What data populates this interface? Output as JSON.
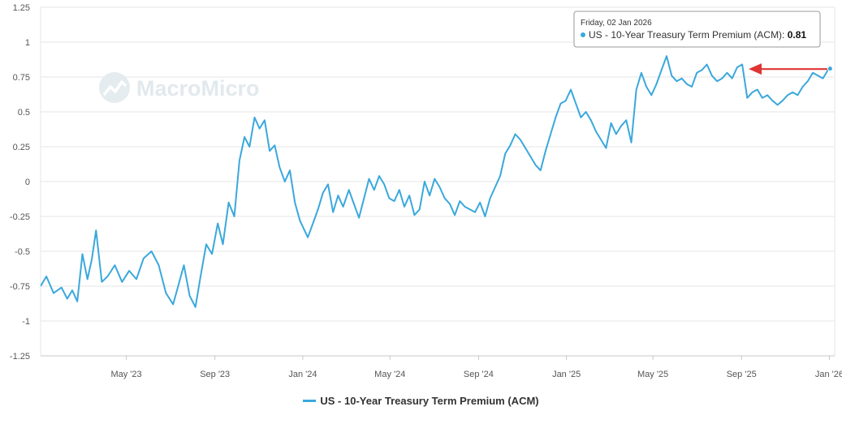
{
  "watermark": {
    "text": "MacroMicro"
  },
  "tooltip": {
    "date": "Friday, 02 Jan 2026",
    "series_label": "US - 10-Year Treasury Term Premium (ACM):",
    "value_text": "0.81"
  },
  "legend": {
    "label": "US - 10-Year Treasury Term Premium (ACM)"
  },
  "colors": {
    "series": "#3aa8dc",
    "arrow": "#e03434",
    "grid": "#e6e6e6"
  },
  "chart_data": {
    "type": "line",
    "title": "",
    "xlabel": "",
    "ylabel": "",
    "ylim": [
      -1.25,
      1.25
    ],
    "yticks": [
      1.25,
      1,
      0.75,
      0.5,
      0.25,
      0,
      -0.25,
      -0.5,
      -0.75,
      -1,
      -1.25
    ],
    "ytick_labels": [
      "1.25",
      "1",
      "0.75",
      "0.5",
      "0.25",
      "0",
      "-0.25",
      "-0.5",
      "-0.75",
      "-1",
      "-1.25"
    ],
    "xlim": [
      "2023-01-02",
      "2026-01-05"
    ],
    "xticks": [
      {
        "date": "2023-05-01",
        "label": "May '23"
      },
      {
        "date": "2023-09-01",
        "label": "Sep '23"
      },
      {
        "date": "2024-01-01",
        "label": "Jan '24"
      },
      {
        "date": "2024-05-01",
        "label": "May '24"
      },
      {
        "date": "2024-09-01",
        "label": "Sep '24"
      },
      {
        "date": "2025-01-01",
        "label": "Jan '25"
      },
      {
        "date": "2025-05-01",
        "label": "May '25"
      },
      {
        "date": "2025-09-01",
        "label": "Sep '25"
      },
      {
        "date": "2026-01-01",
        "label": "Jan '26"
      }
    ],
    "series": [
      {
        "name": "US - 10-Year Treasury Term Premium (ACM)",
        "points": [
          [
            "2023-01-02",
            -0.75
          ],
          [
            "2023-01-10",
            -0.68
          ],
          [
            "2023-01-20",
            -0.8
          ],
          [
            "2023-01-31",
            -0.76
          ],
          [
            "2023-02-08",
            -0.84
          ],
          [
            "2023-02-15",
            -0.78
          ],
          [
            "2023-02-22",
            -0.86
          ],
          [
            "2023-03-01",
            -0.52
          ],
          [
            "2023-03-08",
            -0.7
          ],
          [
            "2023-03-14",
            -0.56
          ],
          [
            "2023-03-20",
            -0.35
          ],
          [
            "2023-03-28",
            -0.72
          ],
          [
            "2023-04-05",
            -0.68
          ],
          [
            "2023-04-15",
            -0.6
          ],
          [
            "2023-04-25",
            -0.72
          ],
          [
            "2023-05-05",
            -0.64
          ],
          [
            "2023-05-15",
            -0.7
          ],
          [
            "2023-05-25",
            -0.55
          ],
          [
            "2023-06-05",
            -0.5
          ],
          [
            "2023-06-15",
            -0.6
          ],
          [
            "2023-06-25",
            -0.8
          ],
          [
            "2023-07-05",
            -0.88
          ],
          [
            "2023-07-12",
            -0.75
          ],
          [
            "2023-07-20",
            -0.6
          ],
          [
            "2023-07-28",
            -0.82
          ],
          [
            "2023-08-05",
            -0.9
          ],
          [
            "2023-08-12",
            -0.68
          ],
          [
            "2023-08-20",
            -0.45
          ],
          [
            "2023-08-28",
            -0.52
          ],
          [
            "2023-09-05",
            -0.3
          ],
          [
            "2023-09-12",
            -0.45
          ],
          [
            "2023-09-20",
            -0.15
          ],
          [
            "2023-09-28",
            -0.25
          ],
          [
            "2023-10-05",
            0.15
          ],
          [
            "2023-10-12",
            0.32
          ],
          [
            "2023-10-19",
            0.25
          ],
          [
            "2023-10-26",
            0.46
          ],
          [
            "2023-11-02",
            0.38
          ],
          [
            "2023-11-09",
            0.44
          ],
          [
            "2023-11-16",
            0.22
          ],
          [
            "2023-11-23",
            0.26
          ],
          [
            "2023-11-30",
            0.1
          ],
          [
            "2023-12-07",
            0.0
          ],
          [
            "2023-12-14",
            0.08
          ],
          [
            "2023-12-21",
            -0.15
          ],
          [
            "2023-12-28",
            -0.28
          ],
          [
            "2024-01-08",
            -0.4
          ],
          [
            "2024-01-15",
            -0.3
          ],
          [
            "2024-01-22",
            -0.2
          ],
          [
            "2024-01-29",
            -0.08
          ],
          [
            "2024-02-05",
            -0.02
          ],
          [
            "2024-02-12",
            -0.22
          ],
          [
            "2024-02-19",
            -0.1
          ],
          [
            "2024-02-26",
            -0.18
          ],
          [
            "2024-03-05",
            -0.06
          ],
          [
            "2024-03-12",
            -0.16
          ],
          [
            "2024-03-19",
            -0.26
          ],
          [
            "2024-03-26",
            -0.12
          ],
          [
            "2024-04-02",
            0.02
          ],
          [
            "2024-04-09",
            -0.06
          ],
          [
            "2024-04-16",
            0.04
          ],
          [
            "2024-04-23",
            -0.02
          ],
          [
            "2024-04-30",
            -0.12
          ],
          [
            "2024-05-07",
            -0.14
          ],
          [
            "2024-05-14",
            -0.06
          ],
          [
            "2024-05-21",
            -0.18
          ],
          [
            "2024-05-28",
            -0.1
          ],
          [
            "2024-06-04",
            -0.24
          ],
          [
            "2024-06-11",
            -0.2
          ],
          [
            "2024-06-18",
            0.0
          ],
          [
            "2024-06-25",
            -0.1
          ],
          [
            "2024-07-02",
            0.02
          ],
          [
            "2024-07-09",
            -0.04
          ],
          [
            "2024-07-16",
            -0.12
          ],
          [
            "2024-07-23",
            -0.16
          ],
          [
            "2024-07-30",
            -0.24
          ],
          [
            "2024-08-06",
            -0.14
          ],
          [
            "2024-08-13",
            -0.18
          ],
          [
            "2024-08-20",
            -0.2
          ],
          [
            "2024-08-27",
            -0.22
          ],
          [
            "2024-09-03",
            -0.15
          ],
          [
            "2024-09-10",
            -0.25
          ],
          [
            "2024-09-17",
            -0.12
          ],
          [
            "2024-09-24",
            -0.04
          ],
          [
            "2024-10-01",
            0.04
          ],
          [
            "2024-10-08",
            0.2
          ],
          [
            "2024-10-15",
            0.26
          ],
          [
            "2024-10-22",
            0.34
          ],
          [
            "2024-10-29",
            0.3
          ],
          [
            "2024-11-05",
            0.24
          ],
          [
            "2024-11-12",
            0.18
          ],
          [
            "2024-11-19",
            0.12
          ],
          [
            "2024-11-26",
            0.08
          ],
          [
            "2024-12-03",
            0.22
          ],
          [
            "2024-12-10",
            0.34
          ],
          [
            "2024-12-17",
            0.46
          ],
          [
            "2024-12-24",
            0.56
          ],
          [
            "2024-12-31",
            0.58
          ],
          [
            "2025-01-07",
            0.66
          ],
          [
            "2025-01-14",
            0.56
          ],
          [
            "2025-01-21",
            0.46
          ],
          [
            "2025-01-28",
            0.5
          ],
          [
            "2025-02-04",
            0.44
          ],
          [
            "2025-02-11",
            0.36
          ],
          [
            "2025-02-18",
            0.3
          ],
          [
            "2025-02-25",
            0.24
          ],
          [
            "2025-03-04",
            0.42
          ],
          [
            "2025-03-11",
            0.34
          ],
          [
            "2025-03-18",
            0.4
          ],
          [
            "2025-03-25",
            0.44
          ],
          [
            "2025-04-01",
            0.28
          ],
          [
            "2025-04-08",
            0.66
          ],
          [
            "2025-04-15",
            0.78
          ],
          [
            "2025-04-22",
            0.68
          ],
          [
            "2025-04-29",
            0.62
          ],
          [
            "2025-05-06",
            0.7
          ],
          [
            "2025-05-13",
            0.8
          ],
          [
            "2025-05-20",
            0.9
          ],
          [
            "2025-05-27",
            0.76
          ],
          [
            "2025-06-03",
            0.72
          ],
          [
            "2025-06-10",
            0.74
          ],
          [
            "2025-06-17",
            0.7
          ],
          [
            "2025-06-24",
            0.68
          ],
          [
            "2025-07-01",
            0.78
          ],
          [
            "2025-07-08",
            0.8
          ],
          [
            "2025-07-15",
            0.84
          ],
          [
            "2025-07-22",
            0.76
          ],
          [
            "2025-07-29",
            0.72
          ],
          [
            "2025-08-05",
            0.74
          ],
          [
            "2025-08-12",
            0.78
          ],
          [
            "2025-08-19",
            0.74
          ],
          [
            "2025-08-26",
            0.82
          ],
          [
            "2025-09-02",
            0.84
          ],
          [
            "2025-09-09",
            0.6
          ],
          [
            "2025-09-16",
            0.64
          ],
          [
            "2025-09-23",
            0.66
          ],
          [
            "2025-09-30",
            0.6
          ],
          [
            "2025-10-07",
            0.62
          ],
          [
            "2025-10-14",
            0.58
          ],
          [
            "2025-10-21",
            0.55
          ],
          [
            "2025-10-28",
            0.58
          ],
          [
            "2025-11-04",
            0.62
          ],
          [
            "2025-11-11",
            0.64
          ],
          [
            "2025-11-18",
            0.62
          ],
          [
            "2025-11-25",
            0.68
          ],
          [
            "2025-12-02",
            0.72
          ],
          [
            "2025-12-09",
            0.78
          ],
          [
            "2025-12-16",
            0.76
          ],
          [
            "2025-12-23",
            0.74
          ],
          [
            "2025-12-30",
            0.8
          ],
          [
            "2026-01-02",
            0.81
          ],
          [
            "2026-01-05",
            0.8
          ]
        ]
      }
    ],
    "highlight": {
      "date": "2026-01-02",
      "value": 0.81
    },
    "annotations": [
      {
        "type": "arrow",
        "value": 0.81,
        "direction": "left",
        "color": "#e03434"
      }
    ]
  }
}
